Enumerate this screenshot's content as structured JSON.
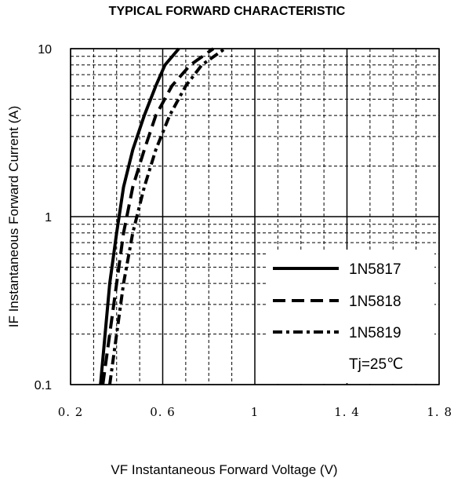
{
  "chart_data": {
    "type": "line",
    "title": "TYPICAL FORWARD CHARACTERISTIC",
    "xlabel": "VF  Instantaneous Forward Voltage (V)",
    "ylabel": "IF Instantaneous Forward Current (A)",
    "xlim": [
      0.2,
      1.8
    ],
    "ylim": [
      0.1,
      10
    ],
    "yscale": "log",
    "x_ticks": [
      0.2,
      0.6,
      1.0,
      1.4,
      1.8
    ],
    "x_tick_labels": [
      "0.2",
      "0.6",
      "1",
      "1.4",
      "1.8"
    ],
    "y_ticks": [
      0.1,
      1,
      10
    ],
    "y_tick_labels": [
      "0.1",
      "1",
      "10"
    ],
    "grid": true,
    "legend_position": "bottom-right",
    "series": [
      {
        "name": "1N5817",
        "line_style": "solid",
        "color": "#000000",
        "x": [
          0.33,
          0.35,
          0.37,
          0.4,
          0.43,
          0.47,
          0.52,
          0.57,
          0.61,
          0.67
        ],
        "y": [
          0.1,
          0.2,
          0.4,
          0.8,
          1.5,
          2.5,
          4.0,
          6.0,
          8.0,
          10.0
        ]
      },
      {
        "name": "1N5818",
        "line_style": "dashed",
        "color": "#000000",
        "x": [
          0.34,
          0.37,
          0.4,
          0.43,
          0.47,
          0.52,
          0.57,
          0.64,
          0.72,
          0.82
        ],
        "y": [
          0.1,
          0.2,
          0.4,
          0.8,
          1.5,
          2.5,
          4.0,
          6.0,
          8.0,
          10.0
        ]
      },
      {
        "name": "1N5819",
        "line_style": "dash-dot",
        "color": "#000000",
        "x": [
          0.37,
          0.4,
          0.43,
          0.47,
          0.52,
          0.57,
          0.63,
          0.7,
          0.77,
          0.87
        ],
        "y": [
          0.1,
          0.2,
          0.4,
          0.8,
          1.5,
          2.5,
          4.0,
          6.0,
          8.0,
          10.0
        ]
      }
    ],
    "annotation": "Tj=25℃"
  }
}
